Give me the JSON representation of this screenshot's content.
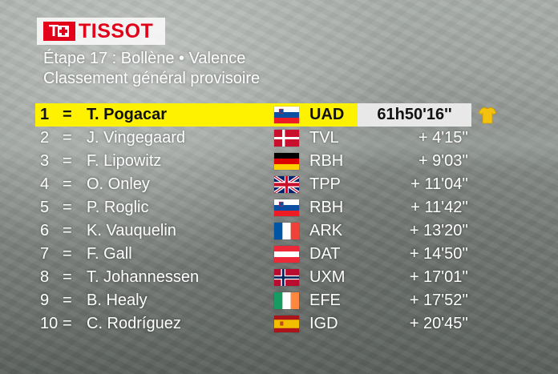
{
  "logo": {
    "brand": "TISSOT"
  },
  "header": {
    "stage": "Étape 17 : Bollène • Valence",
    "classification": "Classement général provisoire"
  },
  "colors": {
    "leader_highlight": "#fff200",
    "time_box": "#e8e8e8",
    "brand_red": "#e2001a",
    "yellow_jersey": "#f2c20f"
  },
  "standings": [
    {
      "rank": "1",
      "sep": "=",
      "name": "T. Pogacar",
      "flag": "slovenia",
      "team": "UAD",
      "time": "61h50'16''",
      "jersey": "yellow-jersey"
    },
    {
      "rank": "2",
      "sep": "=",
      "name": "J. Vingegaard",
      "flag": "denmark",
      "team": "TVL",
      "time": "+ 4'15''"
    },
    {
      "rank": "3",
      "sep": "=",
      "name": "F. Lipowitz",
      "flag": "germany",
      "team": "RBH",
      "time": "+ 9'03''"
    },
    {
      "rank": "4",
      "sep": "=",
      "name": "O. Onley",
      "flag": "united-kingdom",
      "team": "TPP",
      "time": "+ 11'04''"
    },
    {
      "rank": "5",
      "sep": "=",
      "name": "P. Roglic",
      "flag": "slovenia",
      "team": "RBH",
      "time": "+ 11'42''"
    },
    {
      "rank": "6",
      "sep": "=",
      "name": "K. Vauquelin",
      "flag": "france",
      "team": "ARK",
      "time": "+ 13'20''"
    },
    {
      "rank": "7",
      "sep": "=",
      "name": "F. Gall",
      "flag": "austria",
      "team": "DAT",
      "time": "+ 14'50''"
    },
    {
      "rank": "8",
      "sep": "=",
      "name": "T. Johannessen",
      "flag": "norway",
      "team": "UXM",
      "time": "+ 17'01''"
    },
    {
      "rank": "9",
      "sep": "=",
      "name": "B. Healy",
      "flag": "ireland",
      "team": "EFE",
      "time": "+ 17'52''"
    },
    {
      "rank": "10",
      "sep": "=",
      "name": "C. Rodríguez",
      "flag": "spain",
      "team": "IGD",
      "time": "+ 20'45''"
    }
  ]
}
